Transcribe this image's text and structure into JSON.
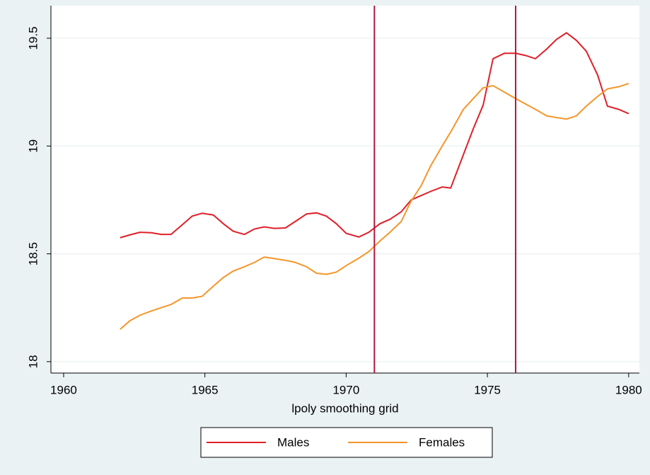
{
  "chart_data": {
    "type": "line",
    "x_label": "lpoly smoothing grid",
    "x": [
      1962.0,
      1962.35,
      1962.7,
      1963.1,
      1963.45,
      1963.8,
      1964.2,
      1964.55,
      1964.9,
      1965.3,
      1965.65,
      1966.0,
      1966.4,
      1966.75,
      1967.1,
      1967.45,
      1967.85,
      1968.2,
      1968.6,
      1968.95,
      1969.3,
      1969.65,
      1970.0,
      1970.45,
      1970.8,
      1971.2,
      1971.55,
      1971.95,
      1972.3,
      1972.65,
      1973.0,
      1973.4,
      1973.7,
      1974.15,
      1974.5,
      1974.85,
      1975.2,
      1975.6,
      1976.0,
      1976.35,
      1976.7,
      1977.1,
      1977.45,
      1977.8,
      1978.15,
      1978.5,
      1978.9,
      1979.25,
      1979.65,
      1980.0
    ],
    "series": [
      {
        "name": "Males",
        "color": "#e0202a",
        "values": [
          18.575,
          18.588,
          18.6,
          18.598,
          18.59,
          18.59,
          18.635,
          18.675,
          18.688,
          18.68,
          18.64,
          18.605,
          18.59,
          18.615,
          18.625,
          18.618,
          18.62,
          18.65,
          18.685,
          18.69,
          18.675,
          18.64,
          18.595,
          18.578,
          18.6,
          18.64,
          18.66,
          18.695,
          18.75,
          18.77,
          18.79,
          18.81,
          18.805,
          18.96,
          19.08,
          19.19,
          19.405,
          19.43,
          19.43,
          19.42,
          19.405,
          19.45,
          19.495,
          19.525,
          19.49,
          19.44,
          19.33,
          19.185,
          19.17,
          19.15
        ]
      },
      {
        "name": "Females",
        "color": "#f5962a",
        "values": [
          18.15,
          18.19,
          18.215,
          18.235,
          18.25,
          18.265,
          18.295,
          18.295,
          18.303,
          18.35,
          18.39,
          18.42,
          18.44,
          18.46,
          18.485,
          18.478,
          18.47,
          18.46,
          18.44,
          18.41,
          18.405,
          18.415,
          18.445,
          18.48,
          18.51,
          18.56,
          18.6,
          18.65,
          18.745,
          18.815,
          18.91,
          19.0,
          19.065,
          19.17,
          19.22,
          19.27,
          19.28,
          19.25,
          19.22,
          19.195,
          19.17,
          19.14,
          19.132,
          19.125,
          19.14,
          19.185,
          19.23,
          19.265,
          19.275,
          19.29
        ]
      }
    ],
    "vlines": [
      1971,
      1976
    ],
    "vline_color": "#b0163c",
    "xlim": [
      1959.55,
      1980.38
    ],
    "xticks": [
      1960,
      1965,
      1970,
      1975,
      1980
    ],
    "ylim": [
      17.947,
      19.651
    ],
    "yticks": [
      18,
      18.5,
      19,
      19.5
    ],
    "grid": true,
    "legend": "bottom"
  }
}
